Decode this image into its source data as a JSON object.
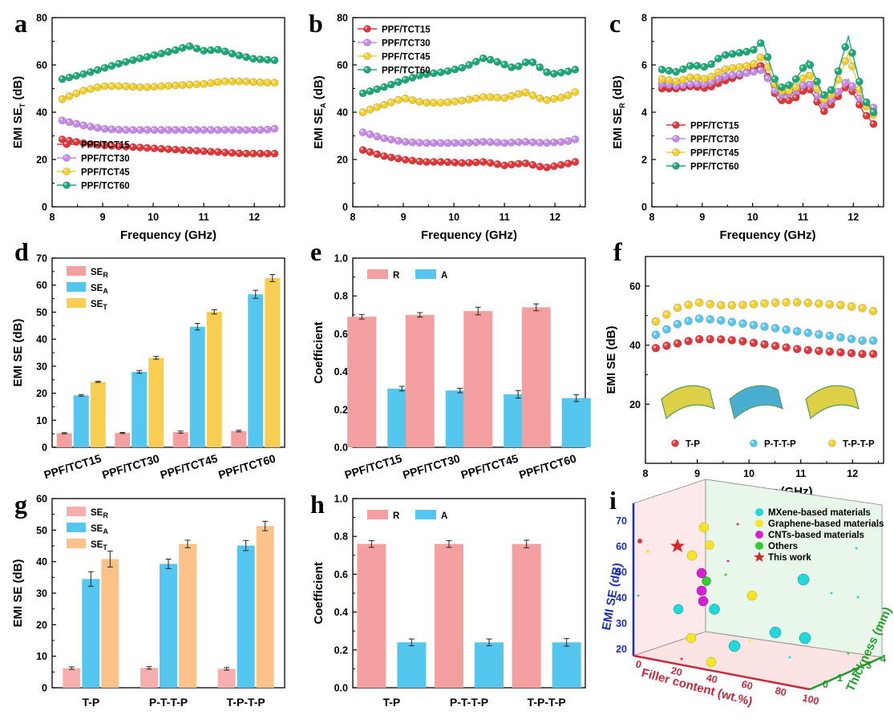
{
  "figure": {
    "title": ""
  },
  "chart_data": [
    {
      "id": "a",
      "panel_label": "a",
      "type": "line",
      "xlabel": "Frequency (GHz)",
      "ylabel_main": "EMI SE",
      "ylabel_sub": "T",
      "ylabel_suffix": " (dB)",
      "xlim": [
        8,
        12.6
      ],
      "ylim": [
        0,
        80
      ],
      "xticks": [
        8,
        9,
        10,
        11,
        12
      ],
      "yticks": [
        0,
        20,
        40,
        60,
        80
      ],
      "legend_position": "bottom-left",
      "series": [
        {
          "name": "PPF/TCT15",
          "color": "#e0363a",
          "x": [
            8.2,
            8.6,
            9.0,
            9.4,
            9.8,
            10.2,
            10.6,
            11.0,
            11.4,
            11.8,
            12.2,
            12.4
          ],
          "y": [
            28.5,
            27,
            26,
            25.5,
            25,
            24.5,
            24,
            23.5,
            23,
            22.5,
            22.5,
            22.5
          ]
        },
        {
          "name": "PPF/TCT30",
          "color": "#c58ae8",
          "x": [
            8.2,
            8.6,
            9.0,
            9.4,
            9.8,
            10.2,
            10.6,
            11.0,
            11.4,
            11.8,
            12.2,
            12.4
          ],
          "y": [
            36.5,
            34.5,
            33,
            32.5,
            32.5,
            32.5,
            32.5,
            32.5,
            32.5,
            32.5,
            32.5,
            33
          ]
        },
        {
          "name": "PPF/TCT45",
          "color": "#f2cf2a",
          "x": [
            8.2,
            8.6,
            9.0,
            9.4,
            9.8,
            10.2,
            10.6,
            11.0,
            11.4,
            11.8,
            12.2,
            12.4
          ],
          "y": [
            45.5,
            49,
            51,
            51,
            50.5,
            51,
            51.5,
            52,
            53,
            53,
            52.5,
            52.5
          ]
        },
        {
          "name": "PPF/TCT60",
          "color": "#1aa877",
          "x": [
            8.2,
            8.6,
            9.0,
            9.4,
            9.8,
            10.2,
            10.4,
            10.7,
            11.0,
            11.3,
            11.6,
            12.0,
            12.4
          ],
          "y": [
            54,
            56,
            58.5,
            61,
            63,
            65,
            66,
            68,
            66,
            66.5,
            64.5,
            62.5,
            62
          ]
        }
      ]
    },
    {
      "id": "b",
      "panel_label": "b",
      "type": "line",
      "xlabel": "Frequency (GHz)",
      "ylabel_main": "EMI SE",
      "ylabel_sub": "A",
      "ylabel_suffix": " (dB)",
      "xlim": [
        8,
        12.6
      ],
      "ylim": [
        0,
        80
      ],
      "xticks": [
        8,
        9,
        10,
        11,
        12
      ],
      "yticks": [
        0,
        20,
        40,
        60,
        80
      ],
      "legend_position": "top-left",
      "series": [
        {
          "name": "PPF/TCT15",
          "color": "#e0363a",
          "x": [
            8.2,
            8.6,
            9.0,
            9.4,
            9.8,
            10.2,
            10.6,
            11.0,
            11.4,
            11.8,
            12.2,
            12.4
          ],
          "y": [
            24,
            21.5,
            20,
            19,
            19,
            18.5,
            19,
            17.5,
            18.5,
            16.5,
            18,
            19
          ]
        },
        {
          "name": "PPF/TCT30",
          "color": "#c58ae8",
          "x": [
            8.2,
            8.6,
            9.0,
            9.4,
            9.8,
            10.2,
            10.6,
            11.0,
            11.4,
            11.8,
            12.2,
            12.4
          ],
          "y": [
            31.5,
            29,
            27.5,
            27,
            27,
            27,
            27.5,
            27,
            27.5,
            27,
            27.5,
            28.5
          ]
        },
        {
          "name": "PPF/TCT45",
          "color": "#f2cf2a",
          "x": [
            8.2,
            8.6,
            9.0,
            9.4,
            9.8,
            10.2,
            10.6,
            11.0,
            11.4,
            11.8,
            12.2,
            12.4
          ],
          "y": [
            40,
            43,
            46,
            44,
            44,
            45,
            46.5,
            46,
            48.5,
            45,
            46.5,
            48.5
          ]
        },
        {
          "name": "PPF/TCT60",
          "color": "#1aa877",
          "x": [
            8.2,
            8.6,
            9.0,
            9.4,
            9.8,
            10.2,
            10.6,
            10.9,
            11.2,
            11.5,
            11.9,
            12.2,
            12.4
          ],
          "y": [
            48,
            50.5,
            53.5,
            56,
            57,
            59,
            63,
            61,
            58.5,
            62,
            56,
            57,
            58
          ]
        }
      ]
    },
    {
      "id": "c",
      "panel_label": "c",
      "type": "line",
      "xlabel": "Frequency (GHz)",
      "ylabel_main": "EMI SE",
      "ylabel_sub": "R",
      "ylabel_suffix": " (dB)",
      "xlim": [
        8,
        12.6
      ],
      "ylim": [
        0,
        8
      ],
      "xticks": [
        8,
        9,
        10,
        11,
        12
      ],
      "yticks": [
        0,
        2,
        4,
        6,
        8
      ],
      "legend_position": "bottom-left",
      "series": [
        {
          "name": "PPF/TCT15",
          "color": "#e0363a",
          "x": [
            8.2,
            8.5,
            8.8,
            9.1,
            9.4,
            9.7,
            10.0,
            10.2,
            10.5,
            10.8,
            11.1,
            11.4,
            11.6,
            11.9,
            12.2,
            12.4
          ],
          "y": [
            5,
            5,
            5.1,
            5,
            5.3,
            5.5,
            5.8,
            6.0,
            4.5,
            4.5,
            5.1,
            4.0,
            4.4,
            5.2,
            4.0,
            3.5
          ]
        },
        {
          "name": "PPF/TCT30",
          "color": "#c58ae8",
          "x": [
            8.2,
            8.5,
            8.8,
            9.1,
            9.4,
            9.7,
            10.0,
            10.2,
            10.5,
            10.8,
            11.1,
            11.4,
            11.6,
            11.9,
            12.2,
            12.4
          ],
          "y": [
            5.2,
            5.1,
            5.2,
            5.2,
            5.5,
            5.6,
            5.7,
            5.8,
            4.7,
            4.8,
            5.3,
            4.3,
            4.6,
            5.4,
            4.3,
            4.2
          ]
        },
        {
          "name": "PPF/TCT45",
          "color": "#f2cf2a",
          "x": [
            8.2,
            8.5,
            8.8,
            9.1,
            9.4,
            9.7,
            10.0,
            10.2,
            10.5,
            10.8,
            11.1,
            11.4,
            11.6,
            11.9,
            12.2,
            12.4
          ],
          "y": [
            5.4,
            5.3,
            5.5,
            5.4,
            5.8,
            5.9,
            6.0,
            6.4,
            4.9,
            4.9,
            5.7,
            4.5,
            4.8,
            6.5,
            4.4,
            3.9
          ]
        },
        {
          "name": "PPF/TCT60",
          "color": "#1aa877",
          "x": [
            8.2,
            8.5,
            8.8,
            9.1,
            9.4,
            9.7,
            10.0,
            10.2,
            10.5,
            10.8,
            11.1,
            11.4,
            11.6,
            11.9,
            12.2,
            12.4
          ],
          "y": [
            5.8,
            5.7,
            6.0,
            5.9,
            6.4,
            6.5,
            6.6,
            7.0,
            5.0,
            5.2,
            6.2,
            4.7,
            5.0,
            7.2,
            4.6,
            4.0
          ]
        }
      ]
    },
    {
      "id": "d",
      "panel_label": "d",
      "type": "bar",
      "xlabel": "",
      "ylabel": "EMI SE (dB)",
      "ylim": [
        0,
        70
      ],
      "yticks": [
        0,
        10,
        20,
        30,
        40,
        50,
        60,
        70
      ],
      "categories": [
        "PPF/TCT15",
        "PPF/TCT30",
        "PPF/TCT45",
        "PPF/TCT60"
      ],
      "legend_position": "top-left",
      "series": [
        {
          "name": "SE",
          "sub": "R",
          "color": "#f4a0a0",
          "values": [
            5.2,
            5.3,
            5.6,
            6.0
          ],
          "err": [
            0.2,
            0.2,
            0.4,
            0.3
          ]
        },
        {
          "name": "SE",
          "sub": "A",
          "color": "#55c6ee",
          "values": [
            19.2,
            27.9,
            44.6,
            56.6
          ],
          "err": [
            0.3,
            0.5,
            1.2,
            1.5
          ]
        },
        {
          "name": "SE",
          "sub": "T",
          "color": "#f7cd52",
          "values": [
            24.2,
            33.1,
            50.1,
            62.6
          ],
          "err": [
            0.2,
            0.5,
            0.8,
            1.3
          ]
        }
      ]
    },
    {
      "id": "e",
      "panel_label": "e",
      "type": "bar",
      "xlabel": "",
      "ylabel": "Coefficient",
      "ylim": [
        0,
        1.0
      ],
      "yticks": [
        0.0,
        0.2,
        0.4,
        0.6,
        0.8,
        1.0
      ],
      "categories": [
        "PPF/TCT15",
        "PPF/TCT30",
        "PPF/TCT45",
        "PPF/TCT60"
      ],
      "legend_position": "top-left",
      "series": [
        {
          "name": "R",
          "sub": "",
          "color": "#f4a0a0",
          "values": [
            0.69,
            0.7,
            0.72,
            0.74
          ],
          "err": [
            0.012,
            0.012,
            0.02,
            0.018
          ]
        },
        {
          "name": "A",
          "sub": "",
          "color": "#55c6ee",
          "values": [
            0.31,
            0.3,
            0.28,
            0.26
          ],
          "err": [
            0.012,
            0.012,
            0.02,
            0.018
          ]
        }
      ]
    },
    {
      "id": "f",
      "panel_label": "f",
      "type": "scatter",
      "xlabel": "Frequency (GHz)",
      "ylabel": "EMI SE (dB)",
      "xlim": [
        8,
        12.6
      ],
      "ylim": [
        0,
        70
      ],
      "xticks": [
        8,
        9,
        10,
        11,
        12
      ],
      "yticks": [
        20,
        40,
        60
      ],
      "legend_position": "bottom",
      "series": [
        {
          "name": "T-P",
          "color": "#e0363a",
          "x": [
            8.2,
            8.6,
            9.0,
            9.4,
            9.8,
            10.2,
            10.6,
            11.0,
            11.4,
            11.8,
            12.2,
            12.4
          ],
          "y": [
            39,
            40.5,
            42,
            42,
            41.5,
            40.5,
            39.5,
            38.5,
            38,
            37.5,
            37,
            37
          ]
        },
        {
          "name": "P-T-T-P",
          "color": "#55c6ee",
          "x": [
            8.2,
            8.6,
            9.0,
            9.4,
            9.8,
            10.2,
            10.6,
            11.0,
            11.4,
            11.8,
            12.2,
            12.4
          ],
          "y": [
            43.5,
            47,
            49,
            48.5,
            47.5,
            46.5,
            45.5,
            44.5,
            43.5,
            42.5,
            41.5,
            41.5
          ]
        },
        {
          "name": "T-P-T-P",
          "color": "#f2cf2a",
          "x": [
            8.2,
            8.6,
            9.0,
            9.4,
            9.8,
            10.2,
            10.6,
            11.0,
            11.4,
            11.8,
            12.2,
            12.4
          ],
          "y": [
            48,
            52.5,
            54.5,
            53.5,
            53.5,
            54,
            54.5,
            54.5,
            54,
            53.5,
            52.5,
            51.5
          ]
        }
      ]
    },
    {
      "id": "g",
      "panel_label": "g",
      "type": "bar",
      "xlabel": "",
      "ylabel": "EMI SE (dB)",
      "ylim": [
        0,
        60
      ],
      "yticks": [
        0,
        10,
        20,
        30,
        40,
        50,
        60
      ],
      "categories": [
        "T-P",
        "P-T-T-P",
        "T-P-T-P"
      ],
      "legend_position": "top-left",
      "series": [
        {
          "name": "SE",
          "sub": "R",
          "color": "#f7aeae",
          "values": [
            6.2,
            6.3,
            6.0
          ],
          "err": [
            0.4,
            0.4,
            0.4
          ]
        },
        {
          "name": "SE",
          "sub": "A",
          "color": "#55c6ee",
          "values": [
            34.5,
            39.3,
            45.1
          ],
          "err": [
            2.3,
            1.5,
            1.6
          ]
        },
        {
          "name": "SE",
          "sub": "T",
          "color": "#fbc38a",
          "values": [
            40.8,
            45.6,
            51.3
          ],
          "err": [
            2.5,
            1.2,
            1.5
          ]
        }
      ]
    },
    {
      "id": "h",
      "panel_label": "h",
      "type": "bar",
      "xlabel": "",
      "ylabel": "Coefficient",
      "ylim": [
        0,
        1.0
      ],
      "yticks": [
        0.0,
        0.2,
        0.4,
        0.6,
        0.8,
        1.0
      ],
      "categories": [
        "T-P",
        "P-T-T-P",
        "T-P-T-P"
      ],
      "legend_position": "top-left",
      "series": [
        {
          "name": "R",
          "sub": "",
          "color": "#f4a0a0",
          "values": [
            0.76,
            0.76,
            0.76
          ],
          "err": [
            0.018,
            0.018,
            0.02
          ]
        },
        {
          "name": "A",
          "sub": "",
          "color": "#55c6ee",
          "values": [
            0.24,
            0.24,
            0.24
          ],
          "err": [
            0.018,
            0.018,
            0.02
          ]
        }
      ]
    }
  ],
  "panel_i": {
    "panel_label": "i",
    "type": "scatter3d",
    "zlabel": "EMI SE (dB)",
    "xlabel": "Filler content (wt.%)",
    "ylabel": "Thickness (mm)",
    "zticks": [
      20,
      30,
      40,
      50,
      60,
      70
    ],
    "xticks": [
      "0",
      "20",
      "40",
      "60",
      "80",
      "100"
    ],
    "yticks": [
      "0",
      "1",
      "2",
      "3",
      "4"
    ],
    "legend": [
      {
        "name": "MXene-based materials",
        "color": "#22d8d8",
        "marker": "sphere"
      },
      {
        "name": "Graphene-based materials",
        "color": "#f5e627",
        "marker": "sphere"
      },
      {
        "name": "CNTs-based materials",
        "color": "#d61fd6",
        "marker": "sphere"
      },
      {
        "name": "Others",
        "color": "#2fcf2f",
        "marker": "sphere"
      },
      {
        "name": "This work",
        "color": "#d8262b",
        "marker": "star"
      }
    ]
  }
}
